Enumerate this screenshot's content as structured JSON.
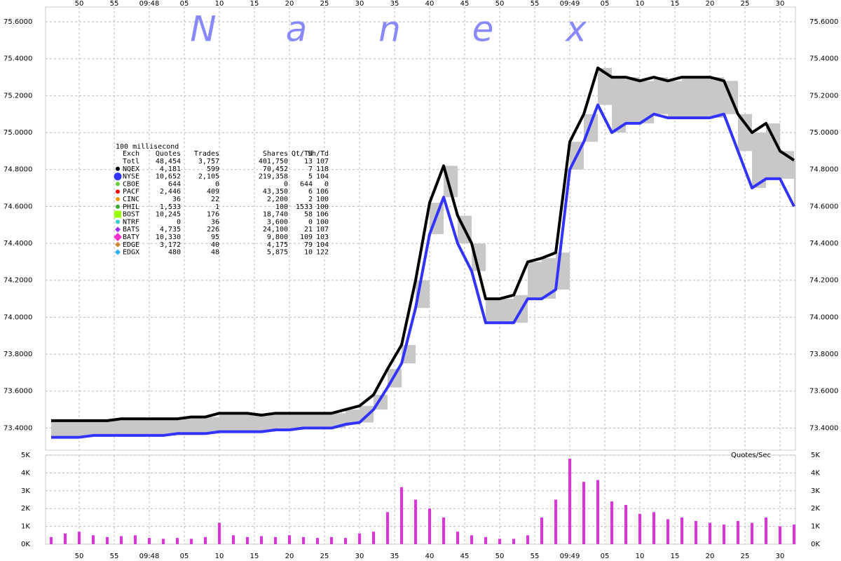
{
  "watermark": "Nanex",
  "legend_table": {
    "title": "100 millisecond",
    "columns": [
      "Exch",
      "Quotes",
      "Trades",
      "Shares",
      "Qt/Td",
      "Sh/Td"
    ],
    "rows": [
      {
        "cells": [
          "Totl",
          "48,454",
          "3,757",
          "401,750",
          "13",
          "107"
        ]
      },
      {
        "cells": [
          "NQEX",
          "4,181",
          "599",
          "70,452",
          "7",
          "118"
        ],
        "color": "#000000",
        "marker": "circle"
      },
      {
        "cells": [
          "NYSE",
          "10,652",
          "2,105",
          "219,358",
          "5",
          "104"
        ],
        "color": "#3333ff",
        "marker": "big-circle"
      },
      {
        "cells": [
          "CBOE",
          "644",
          "0",
          "0",
          "644",
          "0"
        ],
        "color": "#66cc33",
        "marker": "circle"
      },
      {
        "cells": [
          "PACF",
          "2,446",
          "409",
          "43,350",
          "6",
          "106"
        ],
        "color": "#ff0000",
        "marker": "circle"
      },
      {
        "cells": [
          "CINC",
          "36",
          "22",
          "2,200",
          "2",
          "100"
        ],
        "color": "#ff9900",
        "marker": "circle"
      },
      {
        "cells": [
          "PHIL",
          "1,533",
          "1",
          "100",
          "1533",
          "100"
        ],
        "color": "#33aa33",
        "marker": "circle"
      },
      {
        "cells": [
          "BOST",
          "10,245",
          "176",
          "18,740",
          "58",
          "106"
        ],
        "color": "#99ff00",
        "marker": "square"
      },
      {
        "cells": [
          "NTRF",
          "0",
          "36",
          "3,600",
          "0",
          "100"
        ],
        "color": "#33cccc",
        "marker": "circle"
      },
      {
        "cells": [
          "BATS",
          "4,735",
          "226",
          "24,100",
          "21",
          "107"
        ],
        "color": "#9933ff",
        "marker": "diamond"
      },
      {
        "cells": [
          "BATY",
          "10,330",
          "95",
          "9,800",
          "109",
          "103"
        ],
        "color": "#ff33cc",
        "marker": "big-diamond"
      },
      {
        "cells": [
          "EDGE",
          "3,172",
          "40",
          "4,175",
          "79",
          "104"
        ],
        "color": "#cc8833",
        "marker": "diamond"
      },
      {
        "cells": [
          "EDGX",
          "480",
          "48",
          "5,875",
          "10",
          "122"
        ],
        "color": "#33aaff",
        "marker": "diamond"
      }
    ]
  },
  "chart_data": [
    {
      "type": "line",
      "x": [
        46,
        48,
        50,
        52,
        54,
        56,
        58,
        60,
        62,
        64,
        66,
        68,
        70,
        72,
        74,
        76,
        78,
        80,
        82,
        84,
        86,
        88,
        90,
        92,
        94,
        96,
        98,
        100,
        102,
        104,
        106,
        108,
        110,
        112,
        114,
        116,
        118,
        120,
        122,
        124,
        126,
        128,
        130,
        132,
        134,
        136,
        138,
        140,
        142,
        144,
        146,
        148,
        150,
        152
      ],
      "xlim": [
        45.2,
        152.2
      ],
      "xticks": [
        50,
        55,
        {
          "value": 60,
          "label": "09:48"
        },
        {
          "value": 65,
          "label": "05"
        },
        {
          "value": 70,
          "label": "10"
        },
        {
          "value": 75,
          "label": "15"
        },
        {
          "value": 80,
          "label": "20"
        },
        {
          "value": 85,
          "label": "25"
        },
        {
          "value": 90,
          "label": "30"
        },
        {
          "value": 95,
          "label": "35"
        },
        {
          "value": 100,
          "label": "40"
        },
        {
          "value": 105,
          "label": "45"
        },
        {
          "value": 110,
          "label": "50"
        },
        {
          "value": 115,
          "label": "55"
        },
        {
          "value": 120,
          "label": "09:49"
        },
        {
          "value": 125,
          "label": "05"
        },
        {
          "value": 130,
          "label": "10"
        },
        {
          "value": 135,
          "label": "15"
        },
        {
          "value": 140,
          "label": "20"
        },
        {
          "value": 145,
          "label": "25"
        },
        {
          "value": 150,
          "label": "30"
        }
      ],
      "ylim": [
        73.28,
        75.68
      ],
      "yticks": [
        {
          "value": 73.4,
          "label": "73.4000"
        },
        {
          "value": 73.6,
          "label": "73.6000"
        },
        {
          "value": 73.8,
          "label": "73.8000"
        },
        {
          "value": 74.0,
          "label": "74.0000"
        },
        {
          "value": 74.2,
          "label": "74.2000"
        },
        {
          "value": 74.4,
          "label": "74.4000"
        },
        {
          "value": 74.6,
          "label": "74.6000"
        },
        {
          "value": 74.8,
          "label": "74.8000"
        },
        {
          "value": 75.0,
          "label": "75.0000"
        },
        {
          "value": 75.2,
          "label": "75.2000"
        },
        {
          "value": 75.4,
          "label": "75.4000"
        },
        {
          "value": 75.6,
          "label": "75.6000"
        }
      ],
      "grid": true,
      "band_color": "#c8c8c8",
      "series": [
        {
          "color": "#3333ff",
          "values": [
            73.35,
            73.35,
            73.35,
            73.36,
            73.36,
            73.36,
            73.36,
            73.36,
            73.36,
            73.37,
            73.37,
            73.37,
            73.38,
            73.38,
            73.38,
            73.38,
            73.39,
            73.39,
            73.4,
            73.4,
            73.4,
            73.42,
            73.43,
            73.5,
            73.62,
            73.75,
            74.05,
            74.45,
            74.65,
            74.4,
            74.25,
            73.97,
            73.97,
            73.97,
            74.1,
            74.1,
            74.15,
            74.8,
            74.95,
            75.15,
            75.0,
            75.05,
            75.05,
            75.1,
            75.08,
            75.08,
            75.08,
            75.08,
            75.1,
            74.9,
            74.7,
            74.75,
            74.75,
            74.6
          ]
        },
        {
          "color": "#000000",
          "values": [
            73.44,
            73.44,
            73.44,
            73.44,
            73.44,
            73.45,
            73.45,
            73.45,
            73.45,
            73.45,
            73.46,
            73.46,
            73.48,
            73.48,
            73.48,
            73.47,
            73.48,
            73.48,
            73.48,
            73.48,
            73.48,
            73.5,
            73.52,
            73.58,
            73.72,
            73.85,
            74.2,
            74.62,
            74.82,
            74.55,
            74.4,
            74.1,
            74.1,
            74.12,
            74.3,
            74.32,
            74.35,
            74.95,
            75.1,
            75.35,
            75.3,
            75.3,
            75.28,
            75.3,
            75.28,
            75.3,
            75.3,
            75.3,
            75.28,
            75.1,
            75.0,
            75.05,
            74.9,
            74.85
          ]
        }
      ]
    },
    {
      "type": "bar",
      "title": "Quotes/Sec",
      "x": [
        46,
        48,
        50,
        52,
        54,
        56,
        58,
        60,
        62,
        64,
        66,
        68,
        70,
        72,
        74,
        76,
        78,
        80,
        82,
        84,
        86,
        88,
        90,
        92,
        94,
        96,
        98,
        100,
        102,
        104,
        106,
        108,
        110,
        112,
        114,
        116,
        118,
        120,
        122,
        124,
        126,
        128,
        130,
        132,
        134,
        136,
        138,
        140,
        142,
        144,
        146,
        148,
        150,
        152
      ],
      "xlim": [
        45.2,
        152.2
      ],
      "xticks": [
        50,
        55,
        {
          "value": 60,
          "label": "09:48"
        },
        {
          "value": 65,
          "label": "05"
        },
        {
          "value": 70,
          "label": "10"
        },
        {
          "value": 75,
          "label": "15"
        },
        {
          "value": 80,
          "label": "20"
        },
        {
          "value": 85,
          "label": "25"
        },
        {
          "value": 90,
          "label": "30"
        },
        {
          "value": 95,
          "label": "35"
        },
        {
          "value": 100,
          "label": "40"
        },
        {
          "value": 105,
          "label": "45"
        },
        {
          "value": 110,
          "label": "50"
        },
        {
          "value": 115,
          "label": "55"
        },
        {
          "value": 120,
          "label": "09:49"
        },
        {
          "value": 125,
          "label": "05"
        },
        {
          "value": 130,
          "label": "10"
        },
        {
          "value": 135,
          "label": "15"
        },
        {
          "value": 140,
          "label": "20"
        },
        {
          "value": 145,
          "label": "25"
        },
        {
          "value": 150,
          "label": "30"
        }
      ],
      "ylim": [
        0,
        5000
      ],
      "yticks": [
        {
          "value": 0,
          "label": "0K"
        },
        {
          "value": 1000,
          "label": "1K"
        },
        {
          "value": 2000,
          "label": "2K"
        },
        {
          "value": 3000,
          "label": "3K"
        },
        {
          "value": 4000,
          "label": "4K"
        },
        {
          "value": 5000,
          "label": "5K"
        }
      ],
      "grid": true,
      "color": "#dd33dd",
      "values": [
        400,
        600,
        700,
        500,
        400,
        450,
        500,
        350,
        300,
        350,
        300,
        400,
        1200,
        500,
        400,
        450,
        400,
        500,
        400,
        350,
        400,
        350,
        600,
        700,
        1800,
        3200,
        2500,
        2000,
        1500,
        700,
        500,
        400,
        300,
        300,
        500,
        1500,
        2500,
        4800,
        3500,
        3600,
        2400,
        2200,
        1700,
        1800,
        1400,
        1500,
        1300,
        1200,
        1100,
        1300,
        1200,
        1500,
        1000,
        1100
      ]
    }
  ]
}
